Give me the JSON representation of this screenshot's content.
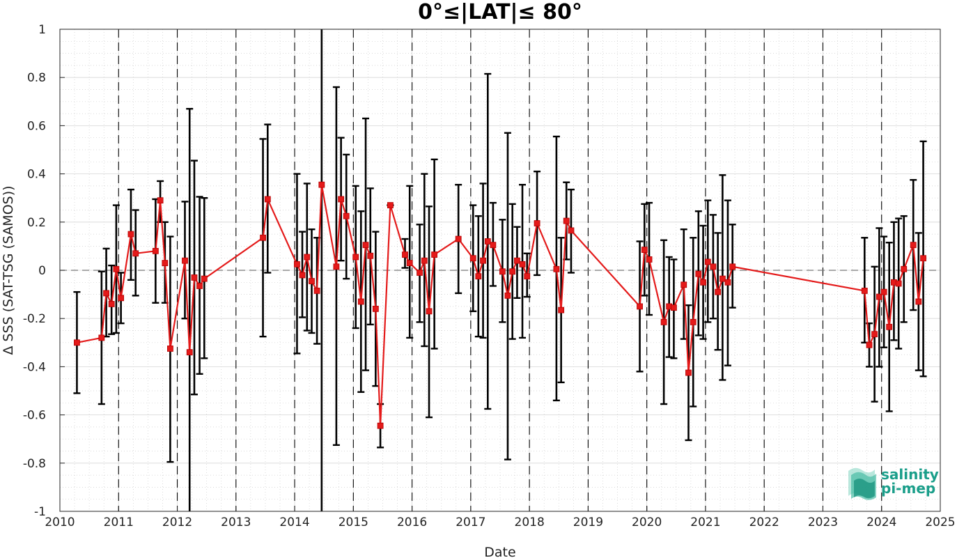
{
  "chart_data": {
    "type": "line",
    "title": "0°≤|LAT|≤ 80°",
    "xlabel": "Date",
    "ylabel": "Δ SSS (SAT-TSG (SAMOS))",
    "xlim": [
      2010,
      2025
    ],
    "ylim": [
      -1,
      1
    ],
    "x_ticks": [
      "2010",
      "2011",
      "2012",
      "2013",
      "2014",
      "2015",
      "2016",
      "2017",
      "2018",
      "2019",
      "2020",
      "2021",
      "2022",
      "2023",
      "2024",
      "2025"
    ],
    "y_ticks": [
      "1",
      "0.8",
      "0.6",
      "0.4",
      "0.2",
      "0",
      "-0.2",
      "-0.4",
      "-0.6",
      "-0.8",
      "-1"
    ],
    "grid": true,
    "zero_line": 0,
    "colors": {
      "series": "#e41a1a",
      "errorbar": "#000000",
      "dashed": "#000000",
      "logo": "#1a9e8a"
    },
    "series": [
      {
        "x": [
          2010.29,
          2010.71,
          2010.79,
          2010.88,
          2010.96,
          2011.04,
          2011.21,
          2011.29,
          2011.63,
          2011.71,
          2011.79,
          2011.88,
          2012.13,
          2012.21,
          2012.29,
          2012.38,
          2012.46,
          2013.46,
          2013.54,
          2014.04,
          2014.13,
          2014.21,
          2014.29,
          2014.38,
          2014.46,
          2014.71,
          2014.79,
          2014.88,
          2015.04,
          2015.13,
          2015.21,
          2015.29,
          2015.38,
          2015.46,
          2015.63,
          2015.88,
          2015.96,
          2016.13,
          2016.21,
          2016.29,
          2016.38,
          2016.79,
          2017.04,
          2017.13,
          2017.21,
          2017.29,
          2017.38,
          2017.54,
          2017.63,
          2017.71,
          2017.79,
          2017.88,
          2017.96,
          2018.13,
          2018.46,
          2018.54,
          2018.63,
          2018.71,
          2019.88,
          2019.96,
          2020.04,
          2020.29,
          2020.38,
          2020.46,
          2020.63,
          2020.71,
          2020.79,
          2020.88,
          2020.96,
          2021.04,
          2021.13,
          2021.21,
          2021.29,
          2021.38,
          2021.46,
          2023.71,
          2023.79,
          2023.88,
          2023.96,
          2024.04,
          2024.13,
          2024.21,
          2024.29,
          2024.38,
          2024.54,
          2024.63,
          2024.71
        ],
        "y": [
          -0.3,
          -0.28,
          -0.095,
          -0.14,
          0.005,
          -0.115,
          0.15,
          0.07,
          0.08,
          0.29,
          0.03,
          -0.325,
          0.04,
          -0.34,
          -0.03,
          -0.065,
          -0.035,
          0.135,
          0.295,
          0.025,
          -0.02,
          0.055,
          -0.045,
          -0.085,
          0.355,
          0.015,
          0.295,
          0.225,
          0.055,
          -0.13,
          0.105,
          0.06,
          -0.16,
          -0.645,
          0.27,
          0.065,
          0.03,
          -0.01,
          0.04,
          -0.17,
          0.065,
          0.13,
          0.05,
          -0.025,
          0.04,
          0.12,
          0.105,
          -0.005,
          -0.105,
          -0.005,
          0.04,
          0.025,
          -0.025,
          0.195,
          0.005,
          -0.165,
          0.205,
          0.165,
          -0.15,
          0.085,
          0.045,
          -0.215,
          -0.15,
          -0.155,
          -0.06,
          -0.425,
          -0.215,
          -0.015,
          -0.05,
          0.035,
          0.015,
          -0.09,
          -0.035,
          -0.05,
          0.015,
          -0.085,
          -0.31,
          -0.265,
          -0.11,
          -0.09,
          -0.235,
          -0.05,
          -0.055,
          0.005,
          0.105,
          -0.13,
          0.05
        ],
        "err_low": [
          -0.51,
          -0.555,
          -0.275,
          -0.265,
          -0.26,
          -0.22,
          -0.04,
          -0.105,
          -0.135,
          0.2,
          -0.135,
          -0.795,
          -0.2,
          -1.0,
          -0.515,
          -0.43,
          -0.365,
          -0.275,
          -0.01,
          -0.345,
          -0.195,
          -0.25,
          -0.26,
          -0.305,
          -1.0,
          -0.725,
          0.04,
          -0.035,
          -0.24,
          -0.505,
          -0.415,
          -0.225,
          -0.48,
          -0.735,
          0.27,
          0.01,
          -0.28,
          -0.215,
          -0.315,
          -0.61,
          -0.325,
          -0.095,
          -0.17,
          -0.275,
          -0.28,
          -0.575,
          -0.065,
          -0.215,
          -0.785,
          -0.285,
          -0.115,
          -0.28,
          -0.11,
          -0.02,
          -0.54,
          -0.465,
          0.045,
          -0.01,
          -0.42,
          -0.105,
          -0.185,
          -0.555,
          -0.36,
          -0.365,
          -0.285,
          -0.705,
          -0.565,
          -0.27,
          -0.285,
          -0.215,
          -0.2,
          -0.33,
          -0.455,
          -0.395,
          -0.155,
          -0.3,
          -0.4,
          -0.545,
          -0.4,
          -0.32,
          -0.585,
          -0.29,
          -0.325,
          -0.215,
          -0.165,
          -0.415,
          -0.44
        ],
        "err_high": [
          -0.09,
          -0.005,
          0.09,
          0.02,
          0.27,
          -0.01,
          0.335,
          0.25,
          0.295,
          0.37,
          0.2,
          0.14,
          0.285,
          0.67,
          0.455,
          0.305,
          0.3,
          0.545,
          0.605,
          0.4,
          0.16,
          0.36,
          0.17,
          0.135,
          1.0,
          0.76,
          0.55,
          0.48,
          0.35,
          0.245,
          0.63,
          0.34,
          0.16,
          -0.555,
          0.27,
          0.13,
          0.35,
          0.19,
          0.4,
          0.265,
          0.46,
          0.355,
          0.27,
          0.225,
          0.36,
          0.815,
          0.28,
          0.21,
          0.57,
          0.275,
          0.18,
          0.355,
          0.07,
          0.41,
          0.555,
          0.135,
          0.365,
          0.335,
          0.12,
          0.275,
          0.28,
          0.125,
          0.055,
          0.045,
          0.17,
          -0.145,
          0.135,
          0.245,
          0.185,
          0.29,
          0.23,
          0.155,
          0.395,
          0.29,
          0.19,
          0.135,
          -0.22,
          0.015,
          0.175,
          0.14,
          0.115,
          0.2,
          0.215,
          0.225,
          0.375,
          0.155,
          0.535
        ]
      }
    ]
  },
  "logo": {
    "line1": "salinity",
    "line2": "pi-mep"
  }
}
